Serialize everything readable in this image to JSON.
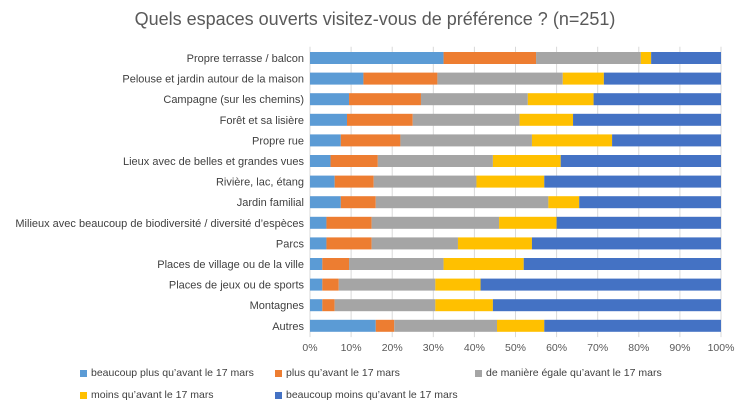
{
  "chart_data": {
    "type": "bar",
    "orientation": "horizontal",
    "stacked": "percent",
    "title": "Quels espaces ouverts visitez-vous de préférence ? (n=251)",
    "categories": [
      "Propre terrasse / balcon",
      "Pelouse et jardin autour de la maison",
      "Campagne (sur les chemins)",
      "Forêt et sa lisière",
      "Propre rue",
      "Lieux avec de belles et grandes vues",
      "Rivière, lac, étang",
      "Jardin familial",
      "Milieux avec beaucoup de biodiversité / diversité d’espèces",
      "Parcs",
      "Places de village ou de la ville",
      "Places de jeux ou de sports",
      "Montagnes",
      "Autres"
    ],
    "series": [
      {
        "name": "beaucoup plus qu’avant le 17 mars",
        "color": "#5B9BD5",
        "values": [
          32.5,
          13,
          9.5,
          9,
          7.5,
          5,
          6,
          7.5,
          4,
          4,
          3,
          3,
          3,
          16
        ]
      },
      {
        "name": "plus qu’avant le 17 mars",
        "color": "#ED7D31",
        "values": [
          22.5,
          18,
          17.5,
          16,
          14.5,
          11.5,
          9.5,
          8.5,
          11,
          11,
          6.5,
          4,
          3,
          4.5
        ]
      },
      {
        "name": "de manière égale qu’avant le 17 mars",
        "color": "#A5A5A5",
        "values": [
          25.5,
          30.5,
          26,
          26,
          32,
          28,
          25,
          42,
          31,
          21,
          23,
          23.5,
          24.5,
          25
        ]
      },
      {
        "name": "moins qu’avant le 17 mars",
        "color": "#FFC000",
        "values": [
          2.5,
          10,
          16,
          13,
          19.5,
          16.5,
          16.5,
          7.5,
          14,
          18,
          19.5,
          11,
          14,
          11.5
        ]
      },
      {
        "name": "beaucoup moins qu’avant le 17 mars",
        "color": "#4472C4",
        "values": [
          17,
          28.5,
          31,
          36,
          26.5,
          39,
          43,
          34.5,
          40,
          46,
          48,
          58.5,
          55.5,
          43
        ]
      }
    ],
    "xlim": [
      0,
      100
    ],
    "xticks": [
      "0%",
      "10%",
      "20%",
      "30%",
      "40%",
      "50%",
      "60%",
      "70%",
      "80%",
      "90%",
      "100%"
    ],
    "grid": true,
    "legend_position": "bottom"
  }
}
